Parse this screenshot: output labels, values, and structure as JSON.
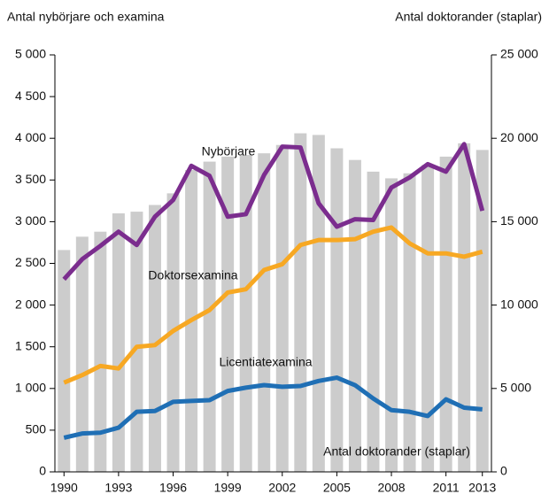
{
  "chart_data": {
    "type": "bar-line",
    "y_label": "Antal nybörjare och examina",
    "y2_label": "Antal doktorander (staplar)",
    "x": [
      1990,
      1991,
      1992,
      1993,
      1994,
      1995,
      1996,
      1997,
      1998,
      1999,
      2000,
      2001,
      2002,
      2003,
      2004,
      2005,
      2006,
      2007,
      2008,
      2009,
      2010,
      2011,
      2012,
      2013
    ],
    "xlim": [
      1989.5,
      2013.5
    ],
    "xticks": [
      1990,
      1993,
      1996,
      1999,
      2002,
      2005,
      2008,
      2011,
      2013
    ],
    "ylim": [
      0,
      5000
    ],
    "yticks": [
      0,
      500,
      {
        "value": 1000,
        "label": "1 000"
      },
      {
        "value": 1500,
        "label": "1 500"
      },
      {
        "value": 2000,
        "label": "2 000"
      },
      {
        "value": 2500,
        "label": "2 500"
      },
      {
        "value": 3000,
        "label": "3 000"
      },
      {
        "value": 3500,
        "label": "3 500"
      },
      {
        "value": 4000,
        "label": "4 000"
      },
      {
        "value": 4500,
        "label": "4 500"
      },
      {
        "value": 5000,
        "label": "5 000"
      }
    ],
    "y2lim": [
      0,
      25000
    ],
    "y2ticks": [
      0,
      {
        "value": 5000,
        "label": "5 000"
      },
      {
        "value": 10000,
        "label": "10 000"
      },
      {
        "value": 15000,
        "label": "15 000"
      },
      {
        "value": 20000,
        "label": "20 000"
      },
      {
        "value": 25000,
        "label": "25 000"
      }
    ],
    "grid": false,
    "series": [
      {
        "name": "Antal doktorander (staplar)",
        "kind": "bar",
        "axis": "y2",
        "color": "#cccccc",
        "values": [
          13300,
          14100,
          14400,
          15500,
          15600,
          16000,
          16700,
          18100,
          18600,
          18900,
          19000,
          19100,
          19600,
          20300,
          20200,
          19400,
          18700,
          18000,
          17600,
          17900,
          18400,
          18900,
          19700,
          19300
        ]
      },
      {
        "name": "Nybörjare",
        "kind": "line",
        "color": "#7b2d8e",
        "values": [
          2310,
          2550,
          2710,
          2880,
          2720,
          3060,
          3260,
          3670,
          3550,
          3060,
          3090,
          3560,
          3900,
          3890,
          3220,
          2940,
          3030,
          3020,
          3410,
          3530,
          3690,
          3600,
          3930,
          3130
        ]
      },
      {
        "name": "Doktorsexamina",
        "kind": "line",
        "color": "#f7a823",
        "values": [
          1070,
          1160,
          1270,
          1240,
          1500,
          1520,
          1690,
          1820,
          1940,
          2150,
          2190,
          2420,
          2490,
          2720,
          2780,
          2780,
          2790,
          2880,
          2930,
          2740,
          2620,
          2620,
          2580,
          2640
        ]
      },
      {
        "name": "Licentiatexamina",
        "kind": "line",
        "color": "#1f6fb5",
        "values": [
          410,
          460,
          470,
          530,
          720,
          730,
          840,
          850,
          860,
          970,
          1010,
          1040,
          1020,
          1030,
          1090,
          1130,
          1040,
          880,
          740,
          720,
          670,
          870,
          770,
          750
        ]
      }
    ]
  }
}
